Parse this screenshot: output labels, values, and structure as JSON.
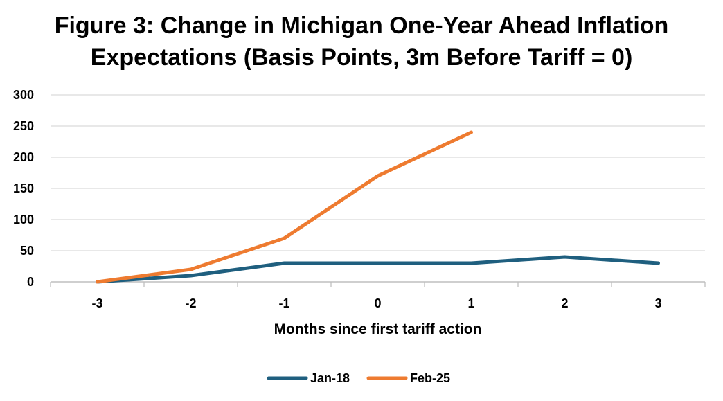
{
  "chart_data": {
    "type": "line",
    "title_lines": [
      "Figure 3: Change in Michigan One-Year Ahead Inflation",
      "Expectations (Basis Points, 3m Before Tariff = 0)"
    ],
    "xlabel": "Months since first tariff action",
    "ylabel": "",
    "categories": [
      "-3",
      "-2",
      "-1",
      "0",
      "1",
      "2",
      "3"
    ],
    "ylim": [
      0,
      300
    ],
    "yticks": [
      0,
      50,
      100,
      150,
      200,
      250,
      300
    ],
    "grid": true,
    "legend": "bottom-center",
    "series": [
      {
        "name": "Jan-18",
        "color": "#1f5f7f",
        "values": [
          0,
          10,
          30,
          30,
          30,
          40,
          30
        ]
      },
      {
        "name": "Feb-25",
        "color": "#ee7b30",
        "values": [
          0,
          20,
          70,
          170,
          240,
          null,
          null
        ]
      }
    ]
  }
}
